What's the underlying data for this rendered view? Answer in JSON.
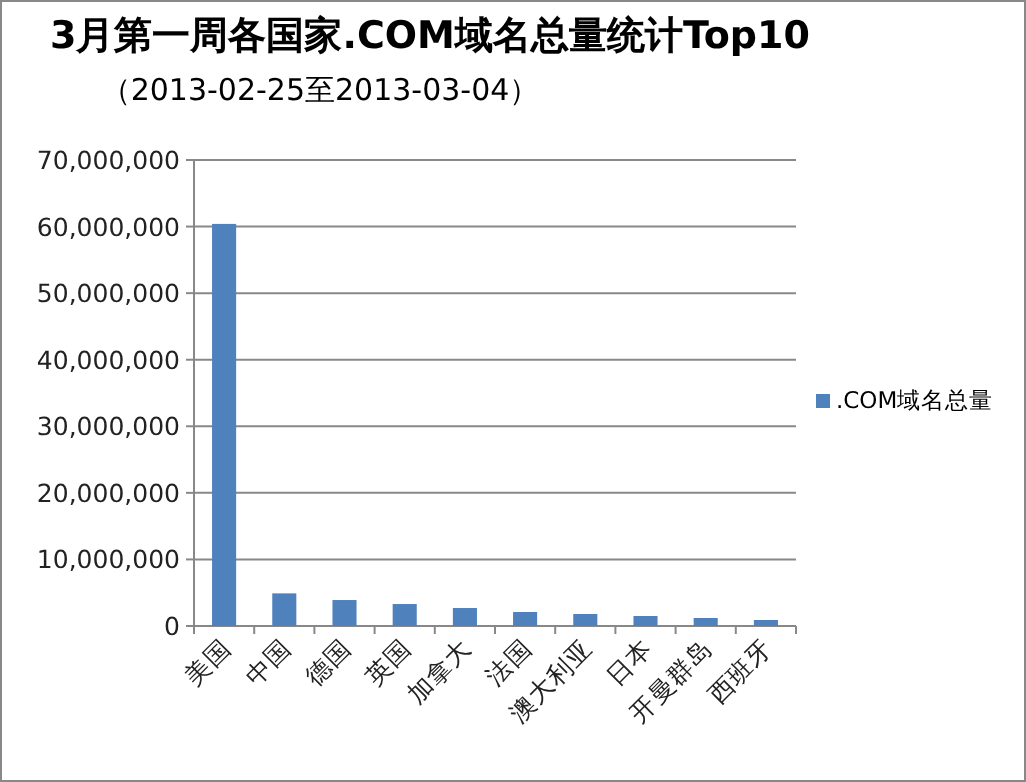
{
  "chart_data": {
    "type": "bar",
    "title": "3月第一周各国家.COM域名总量统计Top10",
    "subtitle": "（2013-02-25至2013-03-04）",
    "categories": [
      "美国",
      "中国",
      "德国",
      "英国",
      "加拿大",
      "法国",
      "澳大利亚",
      "日本",
      "开曼群岛",
      "西班牙"
    ],
    "series": [
      {
        "name": ".COM域名总量",
        "color": "#4f81bd",
        "values": [
          60400000,
          4900000,
          3900000,
          3300000,
          2700000,
          2100000,
          1800000,
          1500000,
          1200000,
          900000
        ]
      }
    ],
    "ylim": [
      0,
      70000000
    ],
    "yticks": [
      0,
      {
        "value": 10000000,
        "label": "10,000,000"
      },
      {
        "value": 20000000,
        "label": "20,000,000"
      },
      {
        "value": 30000000,
        "label": "30,000,000"
      },
      {
        "value": 40000000,
        "label": "40,000,000"
      },
      {
        "value": 50000000,
        "label": "50,000,000"
      },
      {
        "value": 60000000,
        "label": "60,000,000"
      },
      {
        "value": 70000000,
        "label": "70,000,000"
      }
    ],
    "grid": "y",
    "legend": "right"
  }
}
